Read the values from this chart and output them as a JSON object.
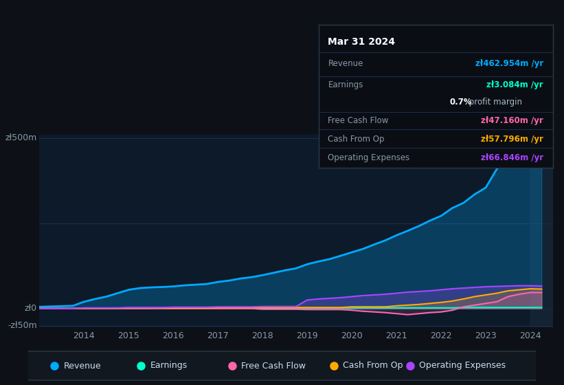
{
  "bg_color": "#0d1117",
  "plot_bg_color": "#0d1a2a",
  "grid_color": "#1e3050",
  "text_color": "#8899aa",
  "tooltip_bg": "#0a0e14",
  "tooltip_border": "#2a3a4a",
  "years": [
    2013.0,
    2013.25,
    2013.5,
    2013.75,
    2014.0,
    2014.25,
    2014.5,
    2014.75,
    2015.0,
    2015.25,
    2015.5,
    2015.75,
    2016.0,
    2016.25,
    2016.5,
    2016.75,
    2017.0,
    2017.25,
    2017.5,
    2017.75,
    2018.0,
    2018.25,
    2018.5,
    2018.75,
    2019.0,
    2019.25,
    2019.5,
    2019.75,
    2020.0,
    2020.25,
    2020.5,
    2020.75,
    2021.0,
    2021.25,
    2021.5,
    2021.75,
    2022.0,
    2022.25,
    2022.5,
    2022.75,
    2023.0,
    2023.25,
    2023.5,
    2023.75,
    2024.0,
    2024.25
  ],
  "revenue": [
    5,
    6,
    7,
    8,
    20,
    28,
    35,
    45,
    55,
    60,
    62,
    63,
    65,
    68,
    70,
    72,
    78,
    82,
    88,
    92,
    98,
    105,
    112,
    118,
    130,
    138,
    145,
    155,
    165,
    175,
    188,
    200,
    215,
    228,
    242,
    258,
    272,
    295,
    310,
    335,
    355,
    410,
    445,
    460,
    463,
    462
  ],
  "earnings": [
    0,
    0,
    0,
    0,
    1,
    1,
    1,
    1,
    1,
    1,
    1,
    2,
    2,
    2,
    2,
    2,
    2,
    2,
    2,
    2,
    2,
    2,
    2,
    2,
    2,
    2,
    2,
    2,
    2,
    2,
    2,
    2,
    2,
    2,
    2,
    2,
    2,
    2,
    3,
    3,
    3,
    3,
    3,
    3,
    3,
    3
  ],
  "free_cash_flow": [
    0,
    0,
    0,
    0,
    0,
    0,
    0,
    0,
    0,
    0,
    0,
    0,
    0,
    0,
    0,
    0,
    0,
    0,
    0,
    0,
    -2,
    -2,
    -2,
    -2,
    -3,
    -3,
    -3,
    -3,
    -5,
    -8,
    -10,
    -12,
    -15,
    -18,
    -15,
    -12,
    -10,
    -5,
    5,
    10,
    15,
    20,
    35,
    42,
    47,
    47
  ],
  "cash_from_op": [
    0,
    0,
    0,
    0,
    1,
    1,
    1,
    1,
    2,
    2,
    2,
    2,
    2,
    2,
    2,
    2,
    3,
    3,
    3,
    3,
    3,
    3,
    3,
    3,
    3,
    3,
    3,
    3,
    5,
    5,
    5,
    5,
    8,
    10,
    12,
    15,
    18,
    22,
    28,
    35,
    40,
    45,
    52,
    55,
    58,
    57
  ],
  "operating_expenses": [
    0,
    0,
    0,
    0,
    2,
    2,
    2,
    2,
    3,
    3,
    3,
    3,
    4,
    4,
    4,
    4,
    5,
    5,
    5,
    5,
    6,
    6,
    6,
    6,
    25,
    28,
    30,
    32,
    35,
    38,
    40,
    42,
    45,
    48,
    50,
    52,
    55,
    58,
    60,
    62,
    64,
    65,
    66,
    67,
    67,
    66
  ],
  "revenue_color": "#00aaff",
  "earnings_color": "#00ffcc",
  "free_cash_flow_color": "#ff66aa",
  "cash_from_op_color": "#ffaa00",
  "operating_expenses_color": "#aa44ff",
  "ylabel_500": "zł500m",
  "ylabel_0": "zł0",
  "ylabel_neg50": "-zł50m",
  "x_ticks": [
    2014,
    2015,
    2016,
    2017,
    2018,
    2019,
    2020,
    2021,
    2022,
    2023,
    2024
  ],
  "xlim": [
    2013.0,
    2024.5
  ],
  "ylim": [
    -55,
    510
  ],
  "tooltip_title": "Mar 31 2024",
  "tooltip_revenue_label": "Revenue",
  "tooltip_revenue_value": "zł462.954m /yr",
  "tooltip_earnings_label": "Earnings",
  "tooltip_earnings_value": "zł3.084m /yr",
  "tooltip_margin_bold": "0.7%",
  "tooltip_margin_rest": " profit margin",
  "tooltip_fcf_label": "Free Cash Flow",
  "tooltip_fcf_value": "zł47.160m /yr",
  "tooltip_cop_label": "Cash From Op",
  "tooltip_cop_value": "zł57.796m /yr",
  "tooltip_opex_label": "Operating Expenses",
  "tooltip_opex_value": "zł66.846m /yr",
  "legend_items": [
    "Revenue",
    "Earnings",
    "Free Cash Flow",
    "Cash From Op",
    "Operating Expenses"
  ],
  "legend_colors": [
    "#00aaff",
    "#00ffcc",
    "#ff66aa",
    "#ffaa00",
    "#aa44ff"
  ]
}
